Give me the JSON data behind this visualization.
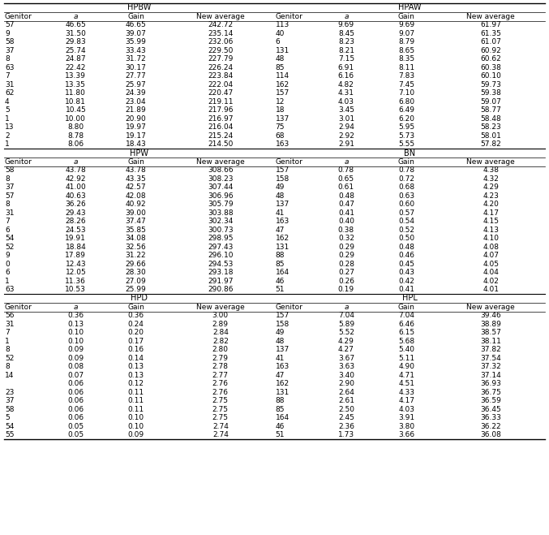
{
  "sections": [
    {
      "name": "HPBW",
      "header": [
        "Genitor",
        "a",
        "Gain",
        "New average"
      ],
      "data": [
        [
          "57",
          "46.65",
          "46.65",
          "242.72"
        ],
        [
          "9",
          "31.50",
          "39.07",
          "235.14"
        ],
        [
          "58",
          "29.83",
          "35.99",
          "232.06"
        ],
        [
          "37",
          "25.74",
          "33.43",
          "229.50"
        ],
        [
          "8",
          "24.87",
          "31.72",
          "227.79"
        ],
        [
          "63",
          "22.42",
          "30.17",
          "226.24"
        ],
        [
          "7",
          "13.39",
          "27.77",
          "223.84"
        ],
        [
          "31",
          "13.35",
          "25.97",
          "222.04"
        ],
        [
          "62",
          "11.80",
          "24.39",
          "220.47"
        ],
        [
          "4",
          "10.81",
          "23.04",
          "219.11"
        ],
        [
          "5",
          "10.45",
          "21.89",
          "217.96"
        ],
        [
          "1",
          "10.00",
          "20.90",
          "216.97"
        ],
        [
          "13",
          "8.80",
          "19.97",
          "216.04"
        ],
        [
          "2",
          "8.78",
          "19.17",
          "215.24"
        ],
        [
          "1",
          "8.06",
          "18.43",
          "214.50"
        ]
      ]
    },
    {
      "name": "HPAW",
      "header": [
        "Genitor",
        "a",
        "Gain",
        "New average"
      ],
      "data": [
        [
          "113",
          "9.69",
          "9.69",
          "61.97"
        ],
        [
          "40",
          "8.45",
          "9.07",
          "61.35"
        ],
        [
          "6",
          "8.23",
          "8.79",
          "61.07"
        ],
        [
          "131",
          "8.21",
          "8.65",
          "60.92"
        ],
        [
          "48",
          "7.15",
          "8.35",
          "60.62"
        ],
        [
          "85",
          "6.91",
          "8.11",
          "60.38"
        ],
        [
          "114",
          "6.16",
          "7.83",
          "60.10"
        ],
        [
          "162",
          "4.82",
          "7.45",
          "59.73"
        ],
        [
          "157",
          "4.31",
          "7.10",
          "59.38"
        ],
        [
          "12",
          "4.03",
          "6.80",
          "59.07"
        ],
        [
          "18",
          "3.45",
          "6.49",
          "58.77"
        ],
        [
          "137",
          "3.01",
          "6.20",
          "58.48"
        ],
        [
          "75",
          "2.94",
          "5.95",
          "58.23"
        ],
        [
          "68",
          "2.92",
          "5.73",
          "58.01"
        ],
        [
          "163",
          "2.91",
          "5.55",
          "57.82"
        ]
      ]
    },
    {
      "name": "HPW",
      "header": [
        "Genitor",
        "a",
        "Gain",
        "New average"
      ],
      "data": [
        [
          "58",
          "43.78",
          "43.78",
          "308.66"
        ],
        [
          "8",
          "42.92",
          "43.35",
          "308.23"
        ],
        [
          "37",
          "41.00",
          "42.57",
          "307.44"
        ],
        [
          "57",
          "40.63",
          "42.08",
          "306.96"
        ],
        [
          "8",
          "36.26",
          "40.92",
          "305.79"
        ],
        [
          "31",
          "29.43",
          "39.00",
          "303.88"
        ],
        [
          "7",
          "28.26",
          "37.47",
          "302.34"
        ],
        [
          "6",
          "24.53",
          "35.85",
          "300.73"
        ],
        [
          "54",
          "19.91",
          "34.08",
          "298.95"
        ],
        [
          "52",
          "18.84",
          "32.56",
          "297.43"
        ],
        [
          "9",
          "17.89",
          "31.22",
          "296.10"
        ],
        [
          "0",
          "12.43",
          "29.66",
          "294.53"
        ],
        [
          "6",
          "12.05",
          "28.30",
          "293.18"
        ],
        [
          "1",
          "11.36",
          "27.09",
          "291.97"
        ],
        [
          "63",
          "10.53",
          "25.99",
          "290.86"
        ]
      ]
    },
    {
      "name": "BN",
      "header": [
        "Genitor",
        "a",
        "Gain",
        "New average"
      ],
      "data": [
        [
          "157",
          "0.78",
          "0.78",
          "4.38"
        ],
        [
          "158",
          "0.65",
          "0.72",
          "4.32"
        ],
        [
          "49",
          "0.61",
          "0.68",
          "4.29"
        ],
        [
          "48",
          "0.48",
          "0.63",
          "4.23"
        ],
        [
          "137",
          "0.47",
          "0.60",
          "4.20"
        ],
        [
          "41",
          "0.41",
          "0.57",
          "4.17"
        ],
        [
          "163",
          "0.40",
          "0.54",
          "4.15"
        ],
        [
          "47",
          "0.38",
          "0.52",
          "4.13"
        ],
        [
          "162",
          "0.32",
          "0.50",
          "4.10"
        ],
        [
          "131",
          "0.29",
          "0.48",
          "4.08"
        ],
        [
          "88",
          "0.29",
          "0.46",
          "4.07"
        ],
        [
          "85",
          "0.28",
          "0.45",
          "4.05"
        ],
        [
          "164",
          "0.27",
          "0.43",
          "4.04"
        ],
        [
          "46",
          "0.26",
          "0.42",
          "4.02"
        ],
        [
          "51",
          "0.19",
          "0.41",
          "4.01"
        ]
      ]
    },
    {
      "name": "HPD",
      "header": [
        "Genitor",
        "a",
        "Gain",
        "New average"
      ],
      "data": [
        [
          "56",
          "0.36",
          "0.36",
          "3.00"
        ],
        [
          "31",
          "0.13",
          "0.24",
          "2.89"
        ],
        [
          "7",
          "0.10",
          "0.20",
          "2.84"
        ],
        [
          "1",
          "0.10",
          "0.17",
          "2.82"
        ],
        [
          "8",
          "0.09",
          "0.16",
          "2.80"
        ],
        [
          "52",
          "0.09",
          "0.14",
          "2.79"
        ],
        [
          "8",
          "0.08",
          "0.13",
          "2.78"
        ],
        [
          "14",
          "0.07",
          "0.13",
          "2.77"
        ],
        [
          "",
          "0.06",
          "0.12",
          "2.76"
        ],
        [
          "23",
          "0.06",
          "0.11",
          "2.76"
        ],
        [
          "37",
          "0.06",
          "0.11",
          "2.75"
        ],
        [
          "58",
          "0.06",
          "0.11",
          "2.75"
        ],
        [
          "5",
          "0.06",
          "0.10",
          "2.75"
        ],
        [
          "54",
          "0.05",
          "0.10",
          "2.74"
        ],
        [
          "55",
          "0.05",
          "0.09",
          "2.74"
        ]
      ]
    },
    {
      "name": "HPL",
      "header": [
        "Genitor",
        "a",
        "Gain",
        "New average"
      ],
      "data": [
        [
          "157",
          "7.04",
          "7.04",
          "39.46"
        ],
        [
          "158",
          "5.89",
          "6.46",
          "38.89"
        ],
        [
          "49",
          "5.52",
          "6.15",
          "38.57"
        ],
        [
          "48",
          "4.29",
          "5.68",
          "38.11"
        ],
        [
          "137",
          "4.27",
          "5.40",
          "37.82"
        ],
        [
          "41",
          "3.67",
          "5.11",
          "37.54"
        ],
        [
          "163",
          "3.63",
          "4.90",
          "37.32"
        ],
        [
          "47",
          "3.40",
          "4.71",
          "37.14"
        ],
        [
          "162",
          "2.90",
          "4.51",
          "36.93"
        ],
        [
          "131",
          "2.64",
          "4.33",
          "36.75"
        ],
        [
          "88",
          "2.61",
          "4.17",
          "36.59"
        ],
        [
          "85",
          "2.50",
          "4.03",
          "36.45"
        ],
        [
          "164",
          "2.45",
          "3.91",
          "36.33"
        ],
        [
          "46",
          "2.36",
          "3.80",
          "36.22"
        ],
        [
          "51",
          "1.73",
          "3.66",
          "36.08"
        ]
      ]
    }
  ],
  "bg_color": "#ffffff",
  "text_color": "#000000",
  "data_fontsize": 6.5,
  "header_fontsize": 6.5,
  "section_fontsize": 7.0
}
